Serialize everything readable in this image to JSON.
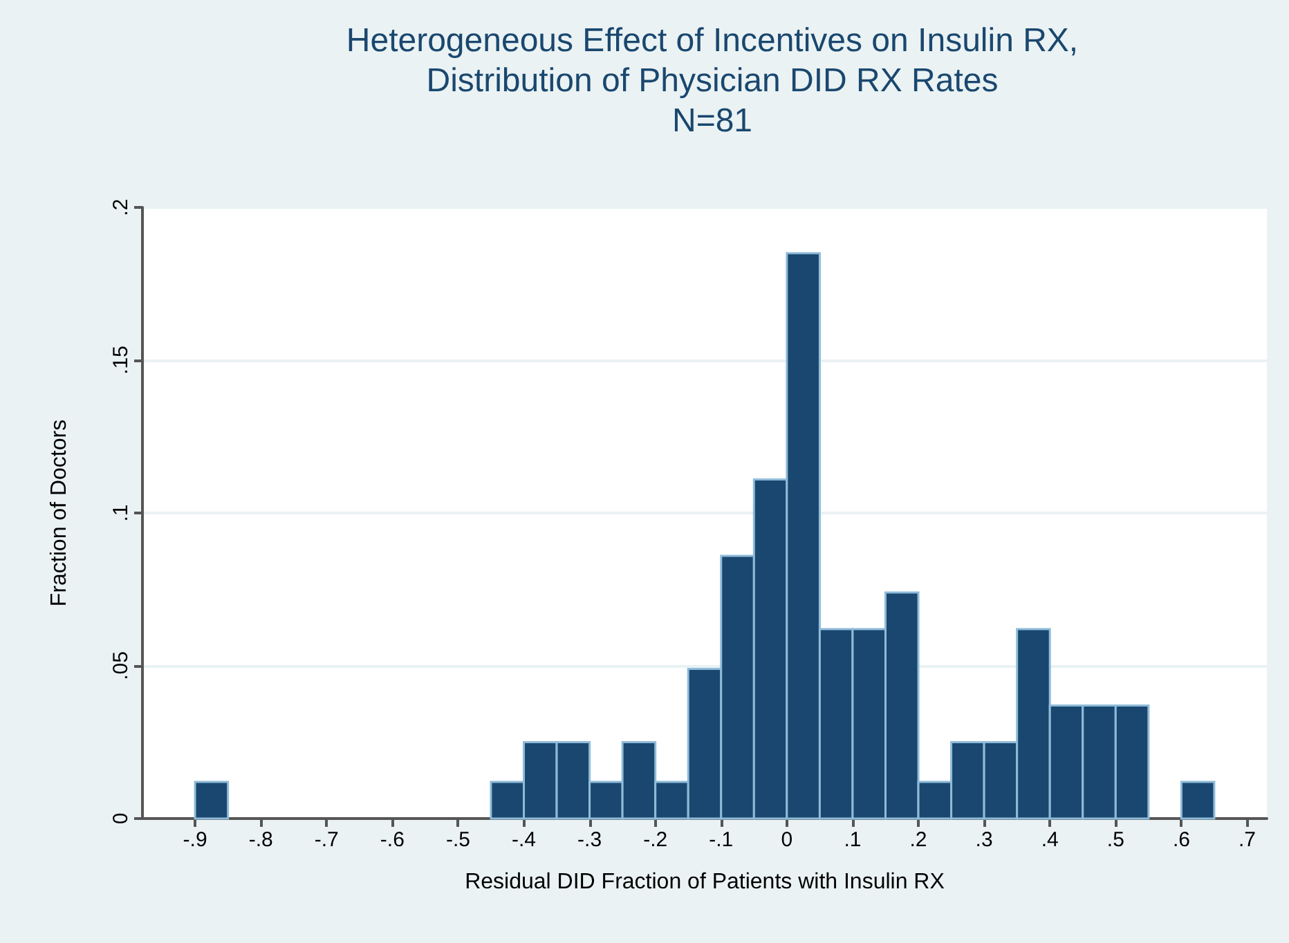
{
  "chart_data": {
    "type": "histogram",
    "title": "Heterogeneous Effect of Incentives on Insulin RX,\nDistribution of Physician DID RX Rates\nN=81",
    "xlabel": "Residual DID Fraction of Patients with Insulin RX",
    "ylabel": "Fraction of Doctors",
    "color": "#1a476f",
    "bins": [
      -0.9,
      -0.85,
      -0.8,
      -0.75,
      -0.7,
      -0.65,
      -0.6,
      -0.55,
      -0.5,
      -0.45,
      -0.4,
      -0.35,
      -0.3,
      -0.25,
      -0.2,
      -0.15,
      -0.1,
      -0.05,
      0,
      0.05,
      0.1,
      0.15,
      0.2,
      0.25,
      0.3,
      0.35,
      0.4,
      0.45,
      0.5,
      0.55,
      0.6,
      0.65
    ],
    "values": [
      0.012,
      0,
      0,
      0,
      0,
      0,
      0,
      0,
      0,
      0.012,
      0.025,
      0.025,
      0.012,
      0.025,
      0.012,
      0.049,
      0.086,
      0.111,
      0.185,
      0.062,
      0.062,
      0.074,
      0.012,
      0.025,
      0.025,
      0.062,
      0.037,
      0.037,
      0.037,
      0,
      0.012
    ],
    "xlim": [
      -0.98,
      0.73
    ],
    "xticks": [
      {
        "value": -0.9,
        "label": "-.9"
      },
      {
        "value": -0.8,
        "label": "-.8"
      },
      {
        "value": -0.7,
        "label": "-.7"
      },
      {
        "value": -0.6,
        "label": "-.6"
      },
      {
        "value": -0.5,
        "label": "-.5"
      },
      {
        "value": -0.4,
        "label": "-.4"
      },
      {
        "value": -0.3,
        "label": "-.3"
      },
      {
        "value": -0.2,
        "label": "-.2"
      },
      {
        "value": -0.1,
        "label": "-.1"
      },
      {
        "value": 0,
        "label": "0"
      },
      {
        "value": 0.1,
        "label": ".1"
      },
      {
        "value": 0.2,
        "label": ".2"
      },
      {
        "value": 0.3,
        "label": ".3"
      },
      {
        "value": 0.4,
        "label": ".4"
      },
      {
        "value": 0.5,
        "label": ".5"
      },
      {
        "value": 0.6,
        "label": ".6"
      },
      {
        "value": 0.7,
        "label": ".7"
      }
    ],
    "ylim": [
      0,
      0.2
    ],
    "yticks": [
      {
        "value": 0,
        "label": "0"
      },
      {
        "value": 0.05,
        "label": ".05"
      },
      {
        "value": 0.1,
        "label": ".1"
      },
      {
        "value": 0.15,
        "label": ".15"
      },
      {
        "value": 0.2,
        "label": ".2"
      }
    ],
    "grid": "y"
  }
}
